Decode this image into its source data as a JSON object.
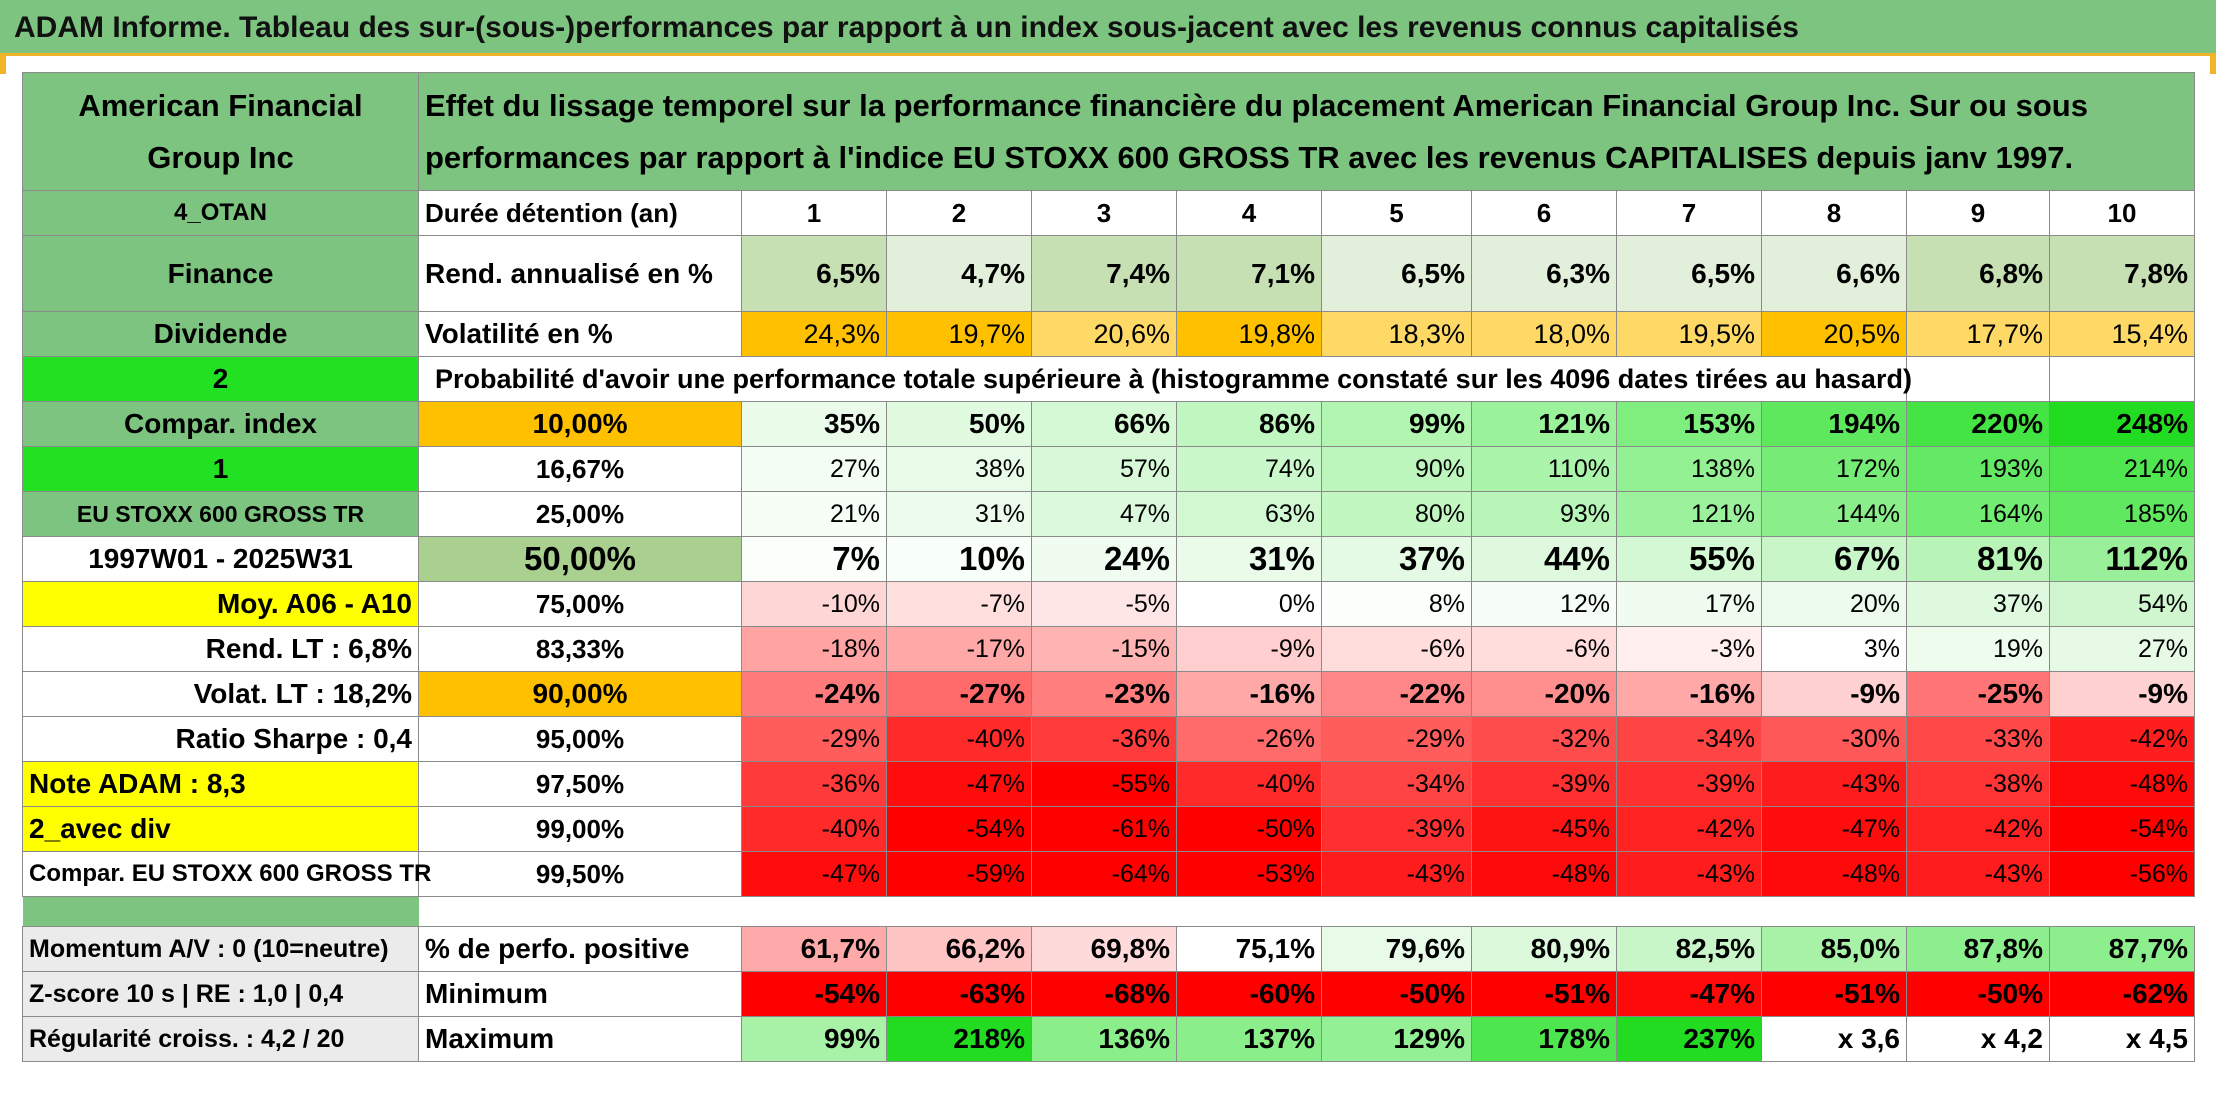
{
  "banner": "ADAM Informe. Tableau des sur-(sous-)performances par rapport à un index sous-jacent avec les revenus connus capitalisés",
  "header": {
    "company": "American Financial Group Inc",
    "description": "Effet du lissage temporel sur la performance financière du placement American Financial Group Inc. Sur ou sous performances par rapport à l'indice EU STOXX 600 GROSS TR avec les revenus CAPITALISES depuis janv 1997."
  },
  "durations": {
    "side": "4_OTAN",
    "label": "Durée détention (an)",
    "values": [
      "1",
      "2",
      "3",
      "4",
      "5",
      "6",
      "7",
      "8",
      "9",
      "10"
    ]
  },
  "rend": {
    "side": "Finance",
    "label": "Rend. annualisé en %",
    "values": [
      "6,5%",
      "4,7%",
      "7,4%",
      "7,1%",
      "6,5%",
      "6,3%",
      "6,5%",
      "6,6%",
      "6,8%",
      "7,8%"
    ],
    "colors": [
      "#c6e0b4",
      "#e2efda",
      "#c6e0b4",
      "#c6e0b4",
      "#e2efda",
      "#e2efda",
      "#e2efda",
      "#e2efda",
      "#c6e0b4",
      "#c6e0b4"
    ]
  },
  "vol": {
    "side": "Dividende",
    "label": "Volatilité en %",
    "values": [
      "24,3%",
      "19,7%",
      "20,6%",
      "19,8%",
      "18,3%",
      "18,0%",
      "19,5%",
      "20,5%",
      "17,7%",
      "15,4%"
    ],
    "colors": [
      "#ffc000",
      "#ffc000",
      "#ffd966",
      "#ffc000",
      "#ffd966",
      "#ffd966",
      "#ffd966",
      "#ffc000",
      "#ffd966",
      "#ffd966"
    ]
  },
  "proba": {
    "side": "2",
    "text": "Probabilité d'avoir une performance totale supérieure à (histogramme constaté sur les 4096 dates tirées au hasard)"
  },
  "quantiles": [
    {
      "side": "Compar. index",
      "pct": "10,00%",
      "values": [
        "35%",
        "50%",
        "66%",
        "86%",
        "99%",
        "121%",
        "153%",
        "194%",
        "220%",
        "248%"
      ],
      "colors": [
        "#eafbea",
        "#e1fbe1",
        "#d4f9d4",
        "#c0f7c0",
        "#b0f5b0",
        "#9af29a",
        "#7eee7e",
        "#5ee85e",
        "#44e444",
        "#22dc22"
      ]
    },
    {
      "side": "1",
      "pct": "16,67%",
      "values": [
        "27%",
        "38%",
        "57%",
        "74%",
        "90%",
        "110%",
        "138%",
        "172%",
        "193%",
        "214%"
      ],
      "colors": [
        "#f3fdf3",
        "#e8fbe8",
        "#d8f9d8",
        "#caf8ca",
        "#bcf6bc",
        "#abf4ab",
        "#93f093",
        "#76ec76",
        "#63e963",
        "#4fe64f"
      ]
    },
    {
      "side": "EU STOXX 600 GROSS TR",
      "pct": "25,00%",
      "values": [
        "21%",
        "31%",
        "47%",
        "63%",
        "80%",
        "93%",
        "121%",
        "144%",
        "164%",
        "185%"
      ],
      "colors": [
        "#f6fef6",
        "#ecfbec",
        "#ddf9dd",
        "#d2f8d2",
        "#c2f7c2",
        "#b8f5b8",
        "#9cf19c",
        "#8aef8a",
        "#73ec73",
        "#60e960"
      ]
    },
    {
      "side": "1997W01 - 2025W31",
      "pct": "50,00%",
      "values": [
        "7%",
        "10%",
        "24%",
        "31%",
        "37%",
        "44%",
        "55%",
        "67%",
        "81%",
        "112%"
      ],
      "colors": [
        "#fbfffb",
        "#f8fef8",
        "#effcef",
        "#eafbea",
        "#e4fae4",
        "#dff9df",
        "#d4f8d4",
        "#c8f6c8",
        "#b8f4b8",
        "#9af09a"
      ]
    },
    {
      "side": "Moy. A06 - A10",
      "pct": "75,00%",
      "values": [
        "-10%",
        "-7%",
        "-5%",
        "0%",
        "8%",
        "12%",
        "17%",
        "20%",
        "37%",
        "54%"
      ],
      "colors": [
        "#ffd6d6",
        "#ffdede",
        "#ffe6e6",
        "#ffffff",
        "#fbfefb",
        "#f6fdf6",
        "#f0fcf0",
        "#ecfbec",
        "#dff9df",
        "#cff6cf"
      ]
    },
    {
      "side": "Rend. LT : 6,8%",
      "pct": "83,33%",
      "values": [
        "-18%",
        "-17%",
        "-15%",
        "-9%",
        "-6%",
        "-6%",
        "-3%",
        "3%",
        "19%",
        "27%"
      ],
      "colors": [
        "#ffa3a3",
        "#ffa8a8",
        "#ffb4b4",
        "#ffcfcf",
        "#ffdddd",
        "#ffdddd",
        "#ffeeee",
        "#fdfefd",
        "#eefcee",
        "#e6fae6"
      ]
    },
    {
      "side": "Volat. LT : 18,2%",
      "pct": "90,00%",
      "values": [
        "-24%",
        "-27%",
        "-23%",
        "-16%",
        "-22%",
        "-20%",
        "-16%",
        "-9%",
        "-25%",
        "-9%"
      ],
      "colors": [
        "#ff7a7a",
        "#ff6a6a",
        "#ff7e7e",
        "#ffa8a8",
        "#ff8686",
        "#ff8f8f",
        "#ffa8a8",
        "#ffd0d0",
        "#ff7474",
        "#ffd0d0"
      ]
    },
    {
      "side": "Ratio Sharpe : 0,4",
      "pct": "95,00%",
      "values": [
        "-29%",
        "-40%",
        "-36%",
        "-26%",
        "-29%",
        "-32%",
        "-34%",
        "-30%",
        "-33%",
        "-42%"
      ],
      "colors": [
        "#ff5c5c",
        "#ff2a2a",
        "#ff3c3c",
        "#ff6a6a",
        "#ff5c5c",
        "#ff4c4c",
        "#ff4444",
        "#ff5858",
        "#ff4848",
        "#ff1e1e"
      ]
    },
    {
      "side": "Note ADAM : 8,3",
      "pct": "97,50%",
      "values": [
        "-36%",
        "-47%",
        "-55%",
        "-40%",
        "-34%",
        "-39%",
        "-39%",
        "-43%",
        "-38%",
        "-48%"
      ],
      "colors": [
        "#ff3a3a",
        "#ff0c0c",
        "#ff0000",
        "#ff2a2a",
        "#ff4444",
        "#ff3030",
        "#ff3030",
        "#ff1c1c",
        "#ff3434",
        "#ff0a0a"
      ]
    },
    {
      "side": "2_avec div",
      "pct": "99,00%",
      "values": [
        "-40%",
        "-54%",
        "-61%",
        "-50%",
        "-39%",
        "-45%",
        "-42%",
        "-47%",
        "-42%",
        "-54%"
      ],
      "colors": [
        "#ff2a2a",
        "#ff0000",
        "#ff0000",
        "#ff0000",
        "#ff3030",
        "#ff1414",
        "#ff2222",
        "#ff0c0c",
        "#ff2222",
        "#ff0000"
      ]
    },
    {
      "side": "Compar. EU STOXX 600 GROSS TR",
      "pct": "99,50%",
      "values": [
        "-47%",
        "-59%",
        "-64%",
        "-53%",
        "-43%",
        "-48%",
        "-43%",
        "-48%",
        "-43%",
        "-56%"
      ],
      "colors": [
        "#ff0c0c",
        "#ff0000",
        "#ff0000",
        "#ff0000",
        "#ff1c1c",
        "#ff0a0a",
        "#ff1c1c",
        "#ff0a0a",
        "#ff1c1c",
        "#ff0000"
      ]
    }
  ],
  "stats": [
    {
      "side": "Momentum A/V : 0 (10=neutre)",
      "label": "% de perfo. positive",
      "values": [
        "61,7%",
        "66,2%",
        "69,8%",
        "75,1%",
        "79,6%",
        "80,9%",
        "82,5%",
        "85,0%",
        "87,8%",
        "87,7%"
      ],
      "colors": [
        "#ffaaaa",
        "#ffc4c4",
        "#ffdada",
        "#ffffff",
        "#e8fbe8",
        "#dcf9dc",
        "#c8f6c8",
        "#a8f2a8",
        "#8cee8c",
        "#8cee8c"
      ]
    },
    {
      "side": "Z-score 10 s | RE : 1,0 | 0,4",
      "label": "Minimum",
      "values": [
        "-54%",
        "-63%",
        "-68%",
        "-60%",
        "-50%",
        "-51%",
        "-47%",
        "-51%",
        "-50%",
        "-62%"
      ],
      "colors": [
        "#ff0000",
        "#ff0000",
        "#ff0000",
        "#ff0000",
        "#ff0000",
        "#ff0000",
        "#ff0a0a",
        "#ff0000",
        "#ff0000",
        "#ff0000"
      ]
    },
    {
      "side": "Régularité croiss. : 4,2 / 20",
      "label": "Maximum",
      "values": [
        "99%",
        "218%",
        "136%",
        "137%",
        "129%",
        "178%",
        "237%",
        "x 3,6",
        "x 4,2",
        "x 4,5"
      ],
      "colors": [
        "#a8f2a8",
        "#22dc22",
        "#8aee8a",
        "#8aee8a",
        "#94f094",
        "#4ee64e",
        "#22dc22",
        "#ffffff",
        "#ffffff",
        "#ffffff"
      ]
    }
  ]
}
